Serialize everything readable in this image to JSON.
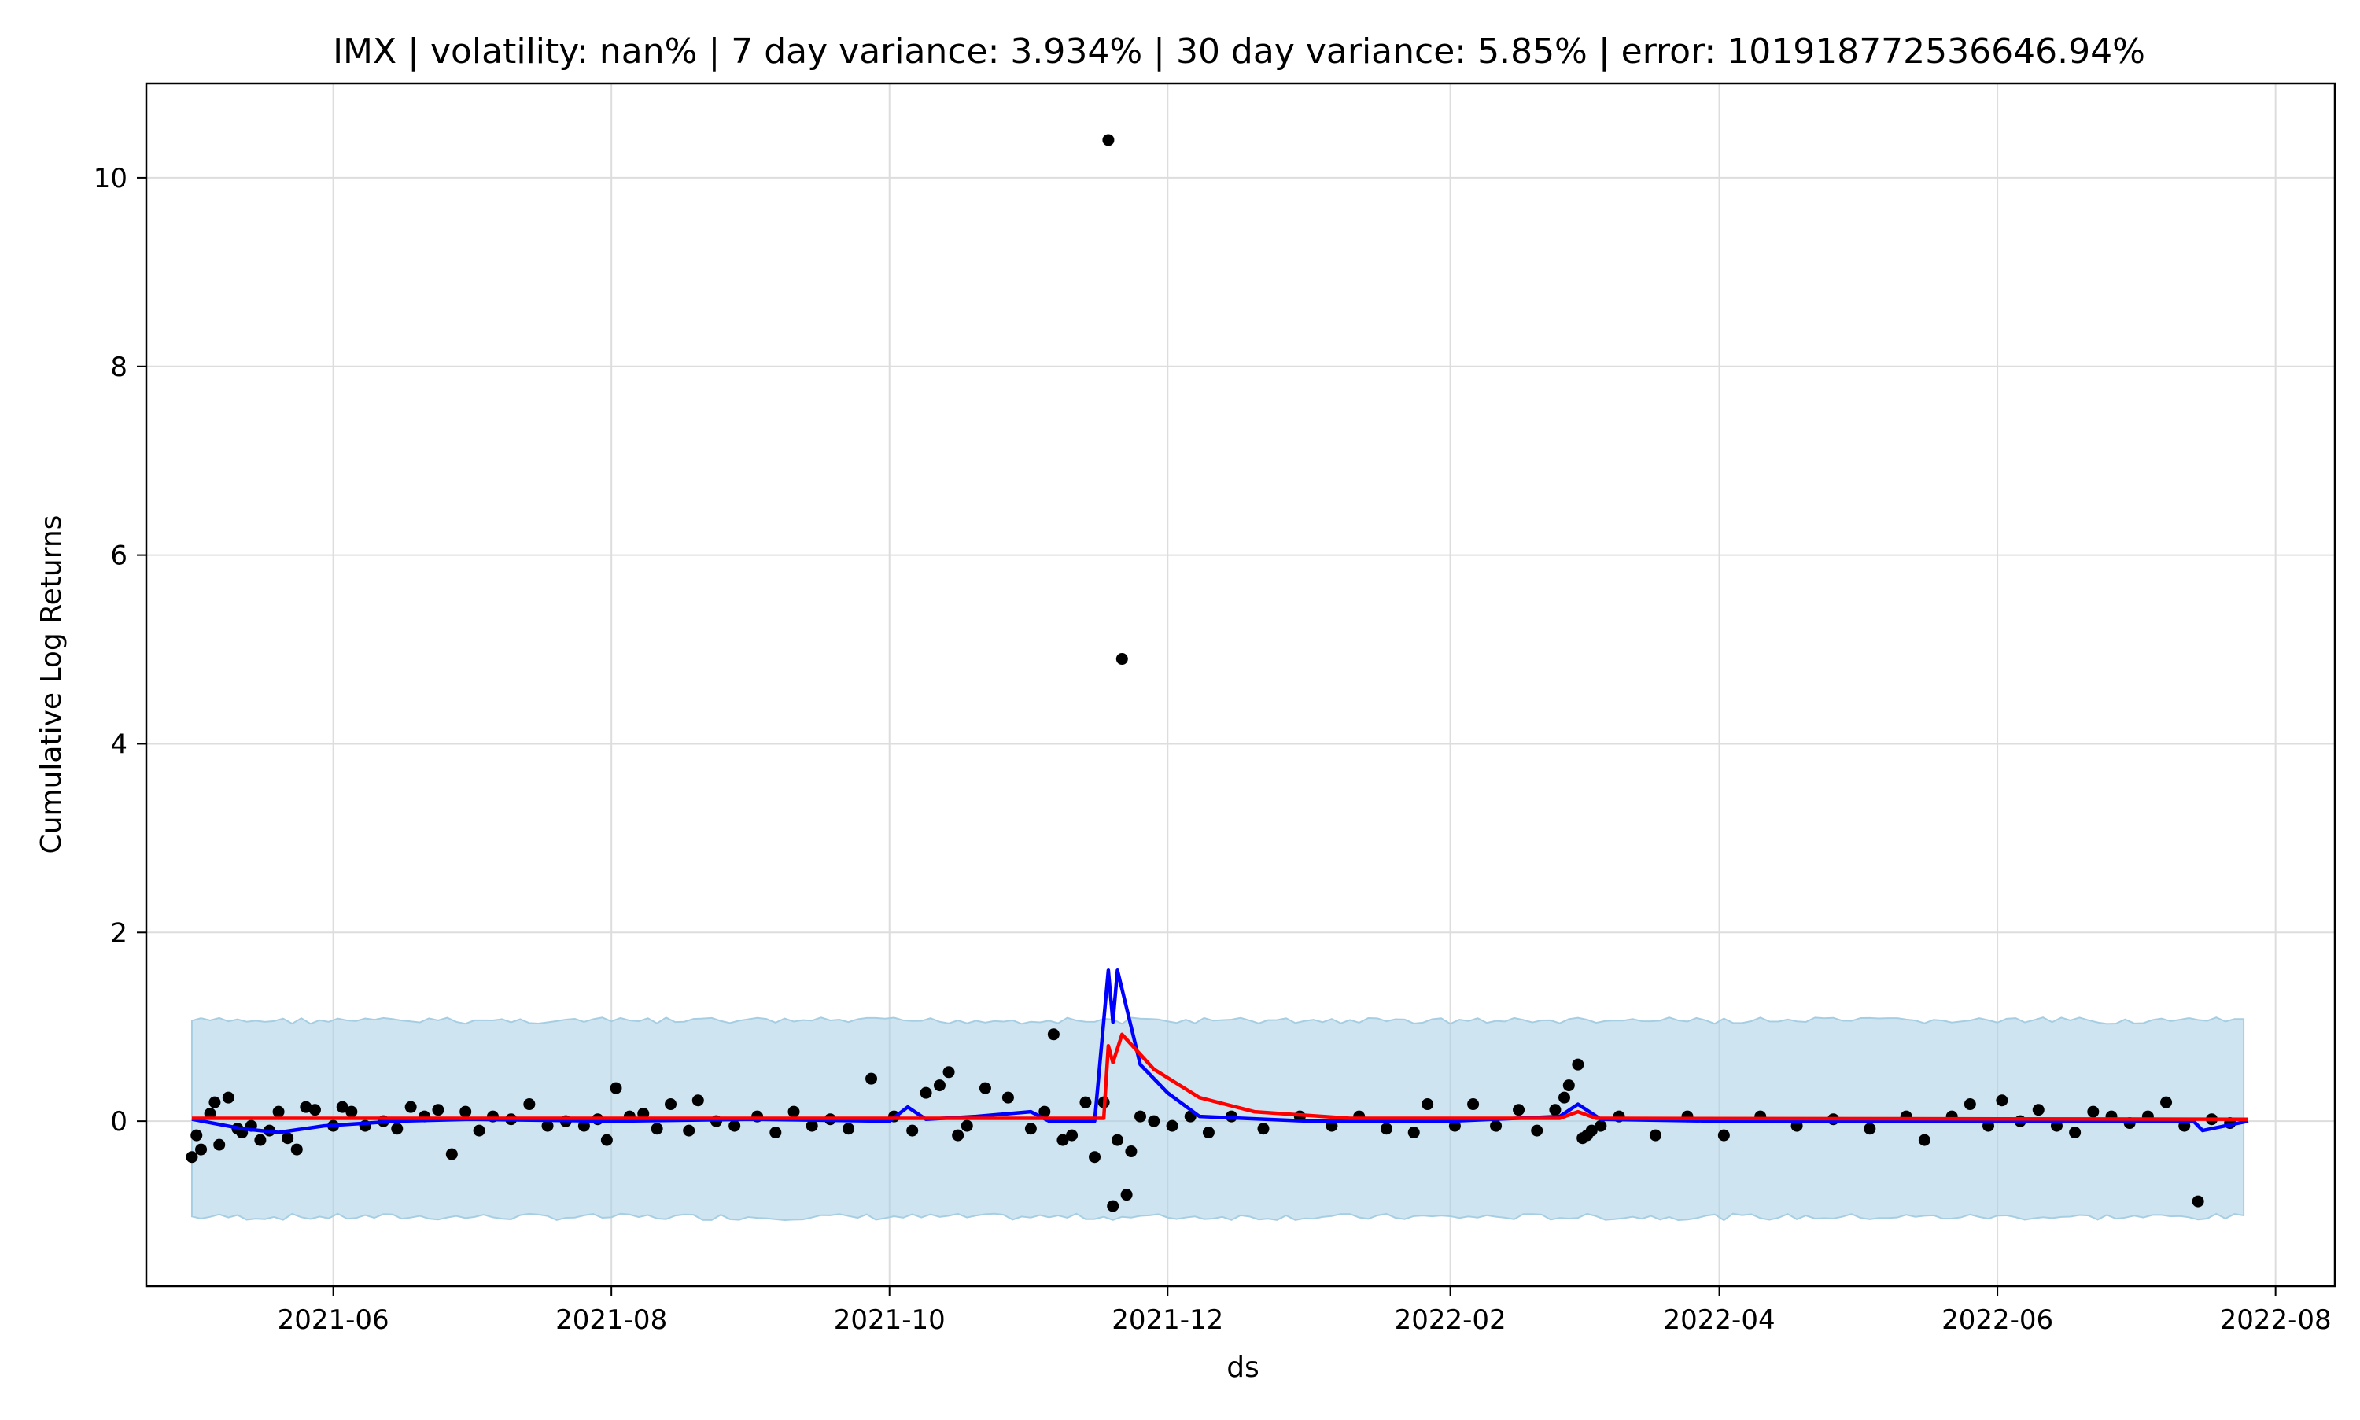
{
  "chart_data": {
    "type": "scatter",
    "title": "IMX | volatility: nan% | 7 day variance: 3.934% | 30 day variance: 5.85% | error: 101918772536646.94%",
    "xlabel": "ds",
    "ylabel": "Cumulative Log Returns",
    "x_ticks": [
      "2021-06",
      "2021-08",
      "2021-10",
      "2021-12",
      "2022-02",
      "2022-04",
      "2022-06",
      "2022-08"
    ],
    "y_ticks": [
      0,
      2,
      4,
      6,
      8,
      10
    ],
    "xlim": [
      "2021-04-21",
      "2022-08-14"
    ],
    "ylim": [
      -1.75,
      11.0
    ],
    "grid": true,
    "colors": {
      "observed": "#000000",
      "fit_line": "#0000ff",
      "trend_line": "#ff0000",
      "band_fill": "#a6cee3",
      "band_edge": "#a6cee3",
      "grid": "#dddddd"
    },
    "interval_band": {
      "x_range": [
        "2021-05-01",
        "2022-07-26"
      ],
      "upper": 1.1,
      "lower": -1.05
    },
    "fit_line": [
      {
        "x": "2021-05-01",
        "y": 0.02
      },
      {
        "x": "2021-05-12",
        "y": -0.08
      },
      {
        "x": "2021-05-20",
        "y": -0.12
      },
      {
        "x": "2021-05-30",
        "y": -0.05
      },
      {
        "x": "2021-06-15",
        "y": 0.0
      },
      {
        "x": "2021-07-01",
        "y": 0.02
      },
      {
        "x": "2021-08-01",
        "y": 0.0
      },
      {
        "x": "2021-09-01",
        "y": 0.02
      },
      {
        "x": "2021-10-01",
        "y": 0.0
      },
      {
        "x": "2021-10-05",
        "y": 0.15
      },
      {
        "x": "2021-10-09",
        "y": 0.02
      },
      {
        "x": "2021-10-20",
        "y": 0.05
      },
      {
        "x": "2021-11-01",
        "y": 0.1
      },
      {
        "x": "2021-11-05",
        "y": 0.0
      },
      {
        "x": "2021-11-15",
        "y": 0.0
      },
      {
        "x": "2021-11-18",
        "y": 1.6
      },
      {
        "x": "2021-11-19",
        "y": 1.05
      },
      {
        "x": "2021-11-20",
        "y": 1.6
      },
      {
        "x": "2021-11-25",
        "y": 0.6
      },
      {
        "x": "2021-12-01",
        "y": 0.3
      },
      {
        "x": "2021-12-08",
        "y": 0.05
      },
      {
        "x": "2022-01-01",
        "y": 0.0
      },
      {
        "x": "2022-02-01",
        "y": 0.0
      },
      {
        "x": "2022-02-25",
        "y": 0.05
      },
      {
        "x": "2022-03-01",
        "y": 0.18
      },
      {
        "x": "2022-03-06",
        "y": 0.02
      },
      {
        "x": "2022-04-01",
        "y": 0.0
      },
      {
        "x": "2022-06-01",
        "y": 0.0
      },
      {
        "x": "2022-07-14",
        "y": 0.0
      },
      {
        "x": "2022-07-16",
        "y": -0.1
      },
      {
        "x": "2022-07-26",
        "y": 0.0
      }
    ],
    "trend_line": [
      {
        "x": "2021-05-01",
        "y": 0.03
      },
      {
        "x": "2021-11-17",
        "y": 0.03
      },
      {
        "x": "2021-11-18",
        "y": 0.8
      },
      {
        "x": "2021-11-19",
        "y": 0.62
      },
      {
        "x": "2021-11-21",
        "y": 0.92
      },
      {
        "x": "2021-11-28",
        "y": 0.55
      },
      {
        "x": "2021-12-08",
        "y": 0.25
      },
      {
        "x": "2021-12-20",
        "y": 0.1
      },
      {
        "x": "2022-01-10",
        "y": 0.03
      },
      {
        "x": "2022-02-25",
        "y": 0.03
      },
      {
        "x": "2022-03-01",
        "y": 0.1
      },
      {
        "x": "2022-03-05",
        "y": 0.03
      },
      {
        "x": "2022-07-26",
        "y": 0.02
      }
    ],
    "points": [
      {
        "x": "2021-05-01",
        "y": -0.38
      },
      {
        "x": "2021-05-02",
        "y": -0.15
      },
      {
        "x": "2021-05-03",
        "y": -0.3
      },
      {
        "x": "2021-05-05",
        "y": 0.08
      },
      {
        "x": "2021-05-06",
        "y": 0.2
      },
      {
        "x": "2021-05-07",
        "y": -0.25
      },
      {
        "x": "2021-05-09",
        "y": 0.25
      },
      {
        "x": "2021-05-11",
        "y": -0.08
      },
      {
        "x": "2021-05-12",
        "y": -0.12
      },
      {
        "x": "2021-05-14",
        "y": -0.05
      },
      {
        "x": "2021-05-16",
        "y": -0.2
      },
      {
        "x": "2021-05-18",
        "y": -0.1
      },
      {
        "x": "2021-05-20",
        "y": 0.1
      },
      {
        "x": "2021-05-22",
        "y": -0.18
      },
      {
        "x": "2021-05-24",
        "y": -0.3
      },
      {
        "x": "2021-05-26",
        "y": 0.15
      },
      {
        "x": "2021-05-28",
        "y": 0.12
      },
      {
        "x": "2021-06-01",
        "y": -0.05
      },
      {
        "x": "2021-06-03",
        "y": 0.15
      },
      {
        "x": "2021-06-05",
        "y": 0.1
      },
      {
        "x": "2021-06-08",
        "y": -0.05
      },
      {
        "x": "2021-06-12",
        "y": 0.0
      },
      {
        "x": "2021-06-15",
        "y": -0.08
      },
      {
        "x": "2021-06-18",
        "y": 0.15
      },
      {
        "x": "2021-06-21",
        "y": 0.05
      },
      {
        "x": "2021-06-24",
        "y": 0.12
      },
      {
        "x": "2021-06-27",
        "y": -0.35
      },
      {
        "x": "2021-06-30",
        "y": 0.1
      },
      {
        "x": "2021-07-03",
        "y": -0.1
      },
      {
        "x": "2021-07-06",
        "y": 0.05
      },
      {
        "x": "2021-07-10",
        "y": 0.02
      },
      {
        "x": "2021-07-14",
        "y": 0.18
      },
      {
        "x": "2021-07-18",
        "y": -0.05
      },
      {
        "x": "2021-07-22",
        "y": 0.0
      },
      {
        "x": "2021-07-26",
        "y": -0.05
      },
      {
        "x": "2021-07-29",
        "y": 0.02
      },
      {
        "x": "2021-07-31",
        "y": -0.2
      },
      {
        "x": "2021-08-02",
        "y": 0.35
      },
      {
        "x": "2021-08-05",
        "y": 0.05
      },
      {
        "x": "2021-08-08",
        "y": 0.08
      },
      {
        "x": "2021-08-11",
        "y": -0.08
      },
      {
        "x": "2021-08-14",
        "y": 0.18
      },
      {
        "x": "2021-08-18",
        "y": -0.1
      },
      {
        "x": "2021-08-20",
        "y": 0.22
      },
      {
        "x": "2021-08-24",
        "y": 0.0
      },
      {
        "x": "2021-08-28",
        "y": -0.05
      },
      {
        "x": "2021-09-02",
        "y": 0.05
      },
      {
        "x": "2021-09-06",
        "y": -0.12
      },
      {
        "x": "2021-09-10",
        "y": 0.1
      },
      {
        "x": "2021-09-14",
        "y": -0.05
      },
      {
        "x": "2021-09-18",
        "y": 0.02
      },
      {
        "x": "2021-09-22",
        "y": -0.08
      },
      {
        "x": "2021-09-27",
        "y": 0.45
      },
      {
        "x": "2021-10-02",
        "y": 0.05
      },
      {
        "x": "2021-10-06",
        "y": -0.1
      },
      {
        "x": "2021-10-09",
        "y": 0.3
      },
      {
        "x": "2021-10-12",
        "y": 0.38
      },
      {
        "x": "2021-10-14",
        "y": 0.52
      },
      {
        "x": "2021-10-16",
        "y": -0.15
      },
      {
        "x": "2021-10-18",
        "y": -0.05
      },
      {
        "x": "2021-10-22",
        "y": 0.35
      },
      {
        "x": "2021-10-27",
        "y": 0.25
      },
      {
        "x": "2021-11-01",
        "y": -0.08
      },
      {
        "x": "2021-11-04",
        "y": 0.1
      },
      {
        "x": "2021-11-06",
        "y": 0.92
      },
      {
        "x": "2021-11-08",
        "y": -0.2
      },
      {
        "x": "2021-11-10",
        "y": -0.15
      },
      {
        "x": "2021-11-13",
        "y": 0.2
      },
      {
        "x": "2021-11-15",
        "y": -0.38
      },
      {
        "x": "2021-11-17",
        "y": 0.2
      },
      {
        "x": "2021-11-18",
        "y": 10.4
      },
      {
        "x": "2021-11-19",
        "y": -0.9
      },
      {
        "x": "2021-11-20",
        "y": -0.2
      },
      {
        "x": "2021-11-21",
        "y": 4.9
      },
      {
        "x": "2021-11-22",
        "y": -0.78
      },
      {
        "x": "2021-11-23",
        "y": -0.32
      },
      {
        "x": "2021-11-25",
        "y": 0.05
      },
      {
        "x": "2021-11-28",
        "y": 0.0
      },
      {
        "x": "2021-12-02",
        "y": -0.05
      },
      {
        "x": "2021-12-06",
        "y": 0.05
      },
      {
        "x": "2021-12-10",
        "y": -0.12
      },
      {
        "x": "2021-12-15",
        "y": 0.05
      },
      {
        "x": "2021-12-22",
        "y": -0.08
      },
      {
        "x": "2021-12-30",
        "y": 0.05
      },
      {
        "x": "2022-01-06",
        "y": -0.05
      },
      {
        "x": "2022-01-12",
        "y": 0.05
      },
      {
        "x": "2022-01-18",
        "y": -0.08
      },
      {
        "x": "2022-01-24",
        "y": -0.12
      },
      {
        "x": "2022-01-27",
        "y": 0.18
      },
      {
        "x": "2022-02-02",
        "y": -0.05
      },
      {
        "x": "2022-02-06",
        "y": 0.18
      },
      {
        "x": "2022-02-11",
        "y": -0.05
      },
      {
        "x": "2022-02-16",
        "y": 0.12
      },
      {
        "x": "2022-02-20",
        "y": -0.1
      },
      {
        "x": "2022-02-24",
        "y": 0.12
      },
      {
        "x": "2022-02-26",
        "y": 0.25
      },
      {
        "x": "2022-02-27",
        "y": 0.38
      },
      {
        "x": "2022-03-01",
        "y": 0.6
      },
      {
        "x": "2022-03-02",
        "y": -0.18
      },
      {
        "x": "2022-03-03",
        "y": -0.15
      },
      {
        "x": "2022-03-04",
        "y": -0.1
      },
      {
        "x": "2022-03-06",
        "y": -0.05
      },
      {
        "x": "2022-03-10",
        "y": 0.05
      },
      {
        "x": "2022-03-18",
        "y": -0.15
      },
      {
        "x": "2022-03-25",
        "y": 0.05
      },
      {
        "x": "2022-04-02",
        "y": -0.15
      },
      {
        "x": "2022-04-10",
        "y": 0.05
      },
      {
        "x": "2022-04-18",
        "y": -0.05
      },
      {
        "x": "2022-04-26",
        "y": 0.02
      },
      {
        "x": "2022-05-04",
        "y": -0.08
      },
      {
        "x": "2022-05-12",
        "y": 0.05
      },
      {
        "x": "2022-05-16",
        "y": -0.2
      },
      {
        "x": "2022-05-22",
        "y": 0.05
      },
      {
        "x": "2022-05-26",
        "y": 0.18
      },
      {
        "x": "2022-05-30",
        "y": -0.05
      },
      {
        "x": "2022-06-02",
        "y": 0.22
      },
      {
        "x": "2022-06-06",
        "y": 0.0
      },
      {
        "x": "2022-06-10",
        "y": 0.12
      },
      {
        "x": "2022-06-14",
        "y": -0.05
      },
      {
        "x": "2022-06-18",
        "y": -0.12
      },
      {
        "x": "2022-06-22",
        "y": 0.1
      },
      {
        "x": "2022-06-26",
        "y": 0.05
      },
      {
        "x": "2022-06-30",
        "y": -0.02
      },
      {
        "x": "2022-07-04",
        "y": 0.05
      },
      {
        "x": "2022-07-08",
        "y": 0.2
      },
      {
        "x": "2022-07-12",
        "y": -0.05
      },
      {
        "x": "2022-07-15",
        "y": -0.85
      },
      {
        "x": "2022-07-18",
        "y": 0.02
      },
      {
        "x": "2022-07-22",
        "y": -0.02
      }
    ]
  }
}
